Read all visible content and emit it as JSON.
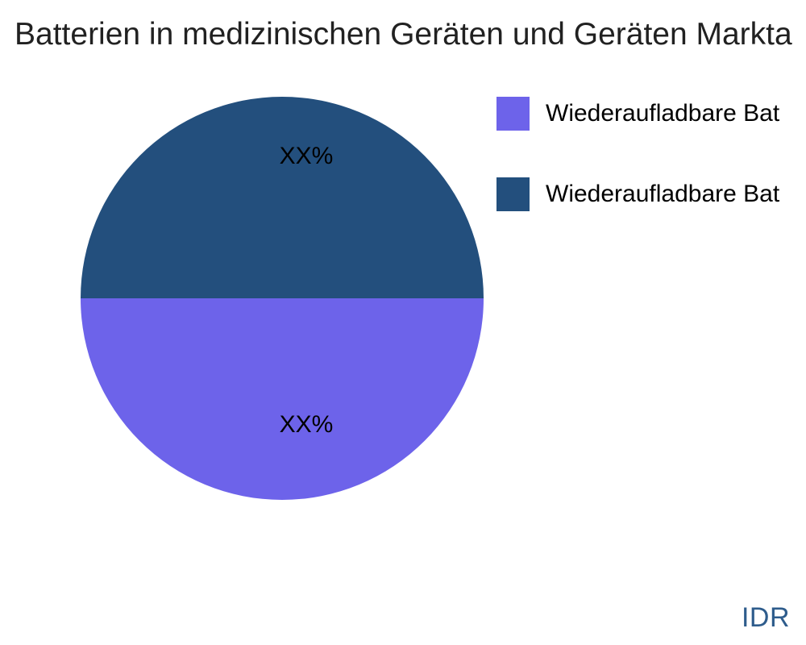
{
  "chart_data": {
    "type": "pie",
    "title": "Batterien in medizinischen Geräten und Geräten Markta",
    "legend_position": "right",
    "slices": [
      {
        "legend_label": "Wiederaufladbare Bat",
        "value_label": "XX%",
        "value_pct": 50,
        "color": "#6D63EA",
        "position": "bottom-half"
      },
      {
        "legend_label": "Wiederaufladbare Bat",
        "value_label": "XX%",
        "value_pct": 50,
        "color": "#234F7D",
        "position": "top-half"
      }
    ]
  },
  "watermark": {
    "text": "IDR",
    "color": "#2E5C8C"
  },
  "colors": {
    "background": "#ffffff",
    "title_text": "#212121",
    "slice_label_text": "#000000"
  }
}
